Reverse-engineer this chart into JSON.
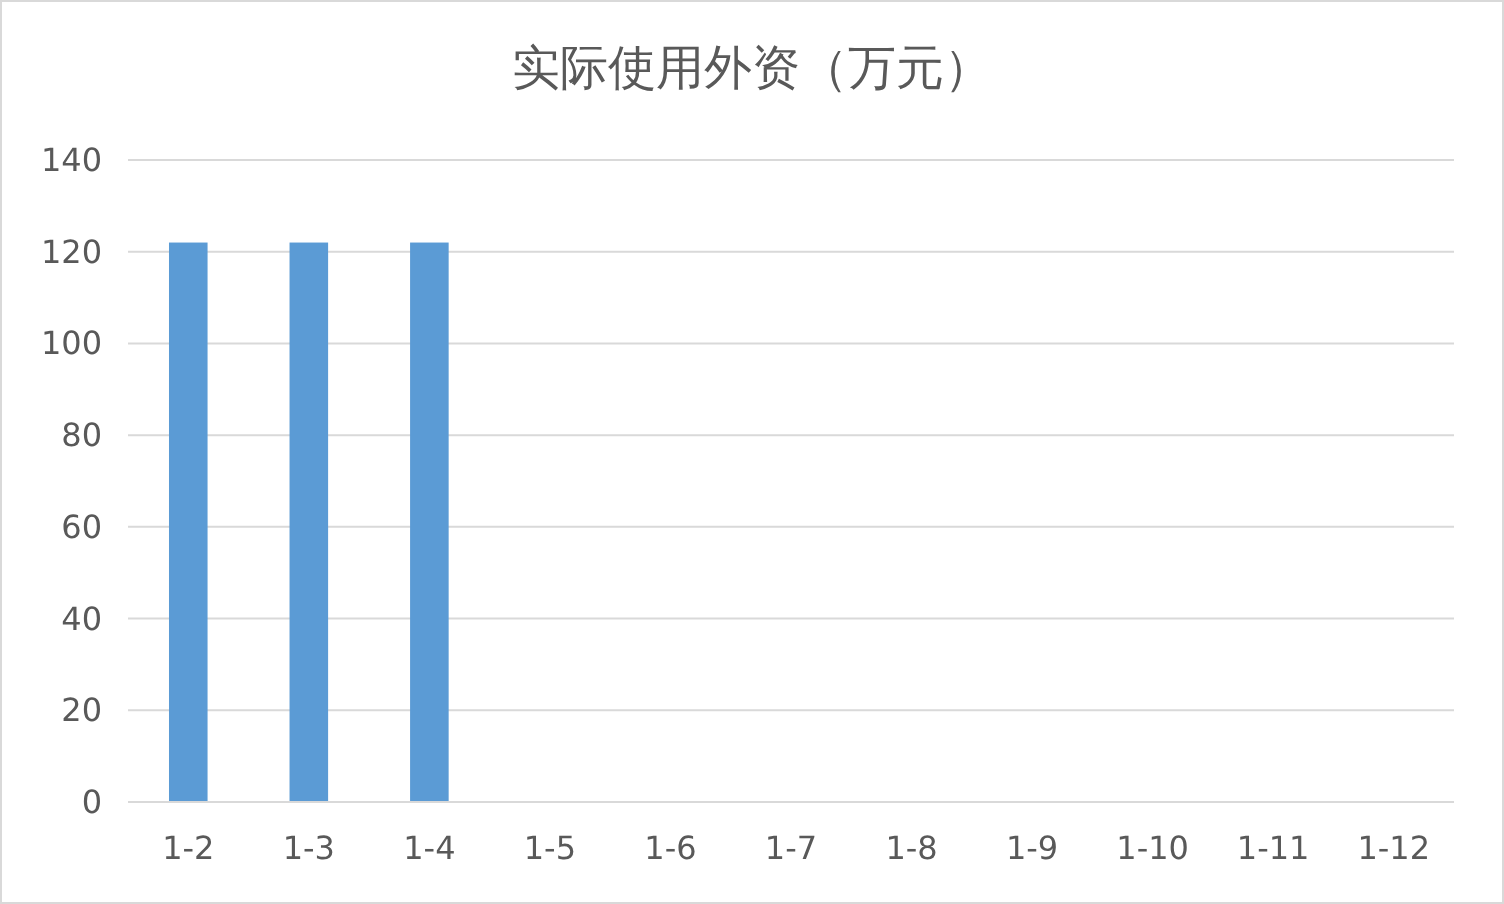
{
  "chart_data": {
    "type": "bar",
    "title": "实际使用外资（万元）",
    "categories": [
      "1-2",
      "1-3",
      "1-4",
      "1-5",
      "1-6",
      "1-7",
      "1-8",
      "1-9",
      "1-10",
      "1-11",
      "1-12"
    ],
    "values": [
      122,
      122,
      122,
      null,
      null,
      null,
      null,
      null,
      null,
      null,
      null
    ],
    "color": "#5b9bd5",
    "ylim": [
      0,
      140
    ],
    "yticks": [
      0,
      20,
      40,
      60,
      80,
      100,
      120,
      140
    ],
    "grid": "y"
  }
}
